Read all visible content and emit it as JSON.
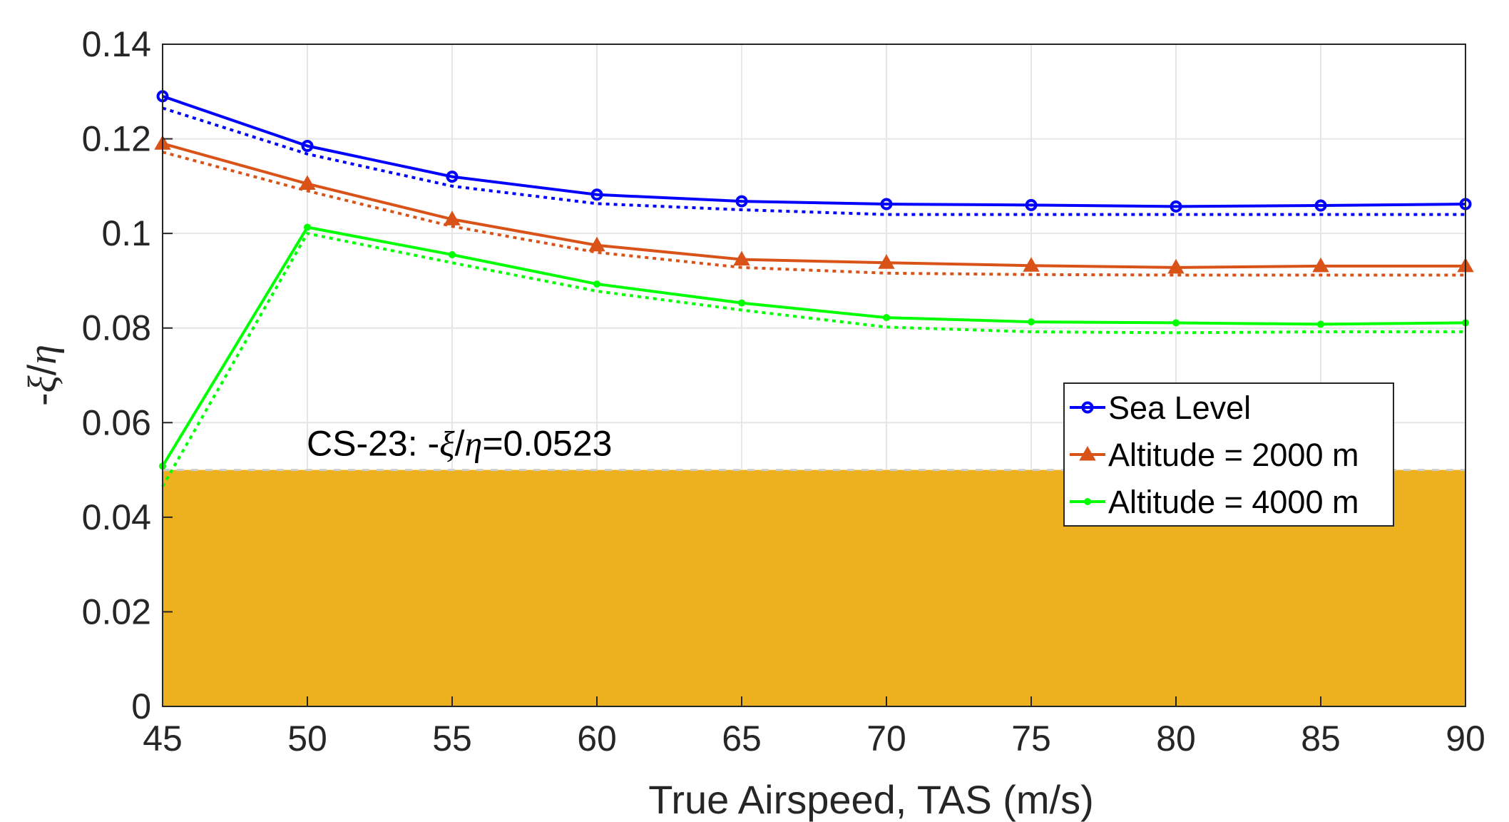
{
  "chart_data": {
    "type": "line",
    "title": "",
    "xlabel": "True Airspeed, TAS (m/s)",
    "ylabel": {
      "prefix": "-",
      "xi": "ξ",
      "slash": "/",
      "eta": "η"
    },
    "xlim": [
      45,
      90
    ],
    "ylim": [
      0,
      0.14
    ],
    "grid": true,
    "x": [
      45,
      50,
      55,
      60,
      65,
      70,
      75,
      80,
      85,
      90
    ],
    "x_tick_labels": [
      "45",
      "50",
      "55",
      "60",
      "65",
      "70",
      "75",
      "80",
      "85",
      "90"
    ],
    "y_ticks": [
      0,
      0.02,
      0.04,
      0.06,
      0.08,
      0.1,
      0.12,
      0.14
    ],
    "y_tick_labels": [
      "0",
      "0.02",
      "0.04",
      "0.06",
      "0.08",
      "0.1",
      "0.12",
      "0.14"
    ],
    "series": [
      {
        "name": "Sea Level",
        "color": "#0000ff",
        "marker": "circle",
        "values": [
          0.129,
          0.1185,
          0.112,
          0.1082,
          0.1068,
          0.1062,
          0.106,
          0.1057,
          0.1059,
          0.1062
        ],
        "dotted_values": [
          0.1265,
          0.1168,
          0.11,
          0.1063,
          0.105,
          0.104,
          0.104,
          0.104,
          0.104,
          0.104
        ]
      },
      {
        "name": "Altitude = 2000 m",
        "color": "#d95319",
        "marker": "triangle",
        "values": [
          0.119,
          0.1105,
          0.103,
          0.0975,
          0.0945,
          0.0938,
          0.0932,
          0.0928,
          0.0931,
          0.0931
        ],
        "dotted_values": [
          0.1172,
          0.109,
          0.1015,
          0.096,
          0.0928,
          0.0916,
          0.0913,
          0.0912,
          0.0912,
          0.0912
        ]
      },
      {
        "name": "Altitude = 4000 m",
        "color": "#00ff00",
        "marker": "point",
        "values": [
          0.0508,
          0.1013,
          0.0955,
          0.0893,
          0.0853,
          0.0822,
          0.0813,
          0.0811,
          0.0808,
          0.0811
        ],
        "dotted_values": [
          0.0465,
          0.1,
          0.0938,
          0.0878,
          0.0838,
          0.0802,
          0.0792,
          0.079,
          0.0792,
          0.0792
        ]
      }
    ],
    "threshold": {
      "value": 0.0523,
      "fill_top": 0.05,
      "color": "#edb120",
      "label": {
        "prefix": "CS-23: -",
        "xi": "ξ",
        "slash": "/",
        "eta": "η",
        "suffix": "=0.0523"
      }
    },
    "legend": {
      "location": "right-middle",
      "entries": [
        "Sea Level",
        "Altitude = 2000 m",
        "Altitude = 4000 m"
      ]
    }
  }
}
